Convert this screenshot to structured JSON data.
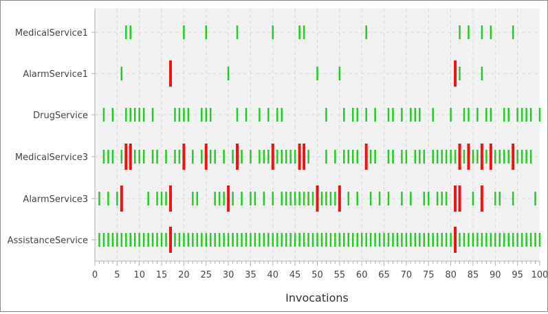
{
  "chart_data": {
    "type": "scatter",
    "title": "",
    "xlabel": "Invocations",
    "ylabel": "",
    "xlim": [
      0,
      100
    ],
    "x_ticks": [
      "0",
      "5",
      "10",
      "15",
      "20",
      "25",
      "30",
      "35",
      "40",
      "45",
      "50",
      "55",
      "60",
      "65",
      "70",
      "75",
      "80",
      "85",
      "90",
      "95",
      "100"
    ],
    "grid": true,
    "categories": [
      "MedicalService1",
      "AlarmService1",
      "DrugService",
      "MedicalService3",
      "AlarmService3",
      "AssistanceService"
    ],
    "colors": {
      "success": "#22cc22",
      "failure": "#ee1111",
      "plot_bg": "#f2f2f2",
      "grid": "#d8d8d8"
    },
    "series": [
      {
        "category": "MedicalService1",
        "success": [
          7,
          8,
          20,
          25,
          32,
          40,
          46,
          47,
          61,
          82,
          84,
          87,
          89,
          94
        ],
        "failure": []
      },
      {
        "category": "AlarmService1",
        "success": [
          6,
          30,
          50,
          55,
          82,
          87
        ],
        "failure": [
          17,
          81
        ]
      },
      {
        "category": "DrugService",
        "success": [
          2,
          4,
          7,
          8,
          9,
          10,
          11,
          13,
          18,
          19,
          20,
          21,
          24,
          25,
          26,
          32,
          34,
          37,
          39,
          41,
          42,
          52,
          56,
          58,
          59,
          61,
          63,
          66,
          67,
          69,
          71,
          72,
          73,
          76,
          80,
          83,
          84,
          86,
          88,
          89,
          92,
          93,
          95,
          96,
          97,
          98,
          100
        ],
        "failure": []
      },
      {
        "category": "MedicalService3",
        "success": [
          2,
          3,
          4,
          6,
          9,
          10,
          11,
          13,
          14,
          16,
          18,
          19,
          22,
          24,
          26,
          27,
          29,
          31,
          33,
          35,
          37,
          38,
          39,
          41,
          42,
          43,
          44,
          45,
          48,
          52,
          54,
          56,
          57,
          58,
          59,
          62,
          63,
          66,
          67,
          69,
          70,
          72,
          73,
          74,
          76,
          77,
          78,
          79,
          80,
          81,
          83,
          85,
          86,
          88,
          90,
          91,
          92,
          93,
          95,
          96,
          97,
          98
        ],
        "failure": [
          7,
          8,
          20,
          25,
          32,
          40,
          46,
          47,
          61,
          82,
          84,
          87,
          89,
          94
        ]
      },
      {
        "category": "AlarmService3",
        "success": [
          1,
          3,
          5,
          12,
          14,
          15,
          16,
          22,
          23,
          27,
          28,
          29,
          31,
          33,
          35,
          36,
          38,
          40,
          42,
          43,
          44,
          45,
          46,
          47,
          48,
          49,
          51,
          52,
          53,
          54,
          57,
          59,
          62,
          64,
          66,
          69,
          71,
          74,
          75,
          77,
          78,
          79,
          85,
          90,
          91,
          94,
          99
        ],
        "failure": [
          6,
          17,
          30,
          50,
          55,
          81,
          82,
          87
        ]
      },
      {
        "category": "AssistanceService",
        "success": [
          1,
          2,
          3,
          4,
          5,
          6,
          7,
          8,
          9,
          10,
          11,
          12,
          13,
          14,
          15,
          16,
          18,
          19,
          20,
          21,
          22,
          23,
          24,
          25,
          26,
          27,
          28,
          29,
          30,
          31,
          32,
          33,
          34,
          35,
          36,
          37,
          38,
          39,
          40,
          41,
          42,
          43,
          44,
          45,
          46,
          47,
          48,
          49,
          50,
          51,
          52,
          53,
          54,
          55,
          56,
          57,
          58,
          59,
          60,
          61,
          62,
          63,
          64,
          65,
          66,
          67,
          68,
          69,
          70,
          71,
          72,
          73,
          74,
          75,
          76,
          77,
          78,
          79,
          80,
          82,
          83,
          84,
          85,
          86,
          87,
          88,
          89,
          90,
          91,
          92,
          93,
          94,
          95,
          96,
          97,
          98,
          99,
          100
        ],
        "failure": [
          17,
          81
        ]
      }
    ]
  }
}
